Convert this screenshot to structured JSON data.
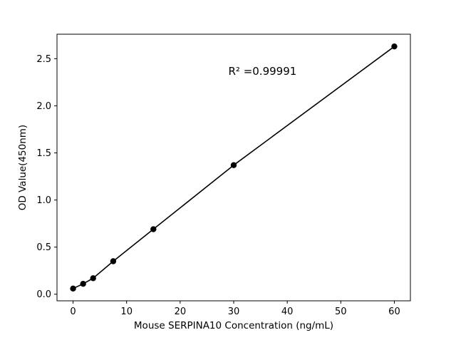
{
  "figure": {
    "background": "#ffffff"
  },
  "chart_data": {
    "type": "scatter",
    "title": "",
    "xlabel": "Mouse SERPINA10 Concentration (ng/mL)",
    "ylabel": "OD Value(450nm)",
    "x": [
      0,
      1.875,
      3.75,
      7.5,
      15,
      30,
      60
    ],
    "y": [
      0.06,
      0.11,
      0.17,
      0.35,
      0.69,
      1.37,
      2.63
    ],
    "line": true,
    "line_color": "#000000",
    "marker_color": "#000000",
    "xlim": [
      -3,
      63
    ],
    "ylim": [
      -0.07,
      2.76
    ],
    "xticks": [
      0,
      10,
      20,
      30,
      40,
      50,
      60
    ],
    "xtick_labels": [
      "0",
      "10",
      "20",
      "30",
      "40",
      "50",
      "60"
    ],
    "yticks": [
      0.0,
      0.5,
      1.0,
      1.5,
      2.0,
      2.5
    ],
    "ytick_labels": [
      "0.0",
      "0.5",
      "1.0",
      "1.5",
      "2.0",
      "2.5"
    ],
    "grid": false,
    "legend": null,
    "annotation": {
      "text": "R² =0.99991",
      "x": 29,
      "y": 2.33
    }
  }
}
